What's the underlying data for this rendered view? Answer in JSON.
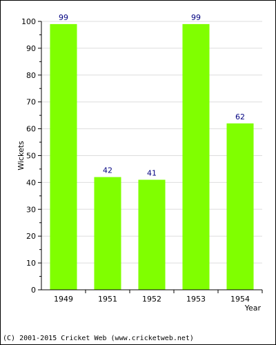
{
  "chart_data": {
    "type": "bar",
    "categories": [
      "1949",
      "1951",
      "1952",
      "1953",
      "1954"
    ],
    "values": [
      99,
      42,
      41,
      99,
      62
    ],
    "title": "",
    "xlabel": "Year",
    "ylabel": "Wickets",
    "ylim": [
      0,
      100
    ],
    "yticks": [
      0,
      10,
      20,
      30,
      40,
      50,
      60,
      70,
      80,
      90,
      100
    ],
    "grid": true,
    "legend": "none",
    "bar_color": "#80ff00",
    "label_color": "#000080"
  },
  "footer": {
    "text": "(C) 2001-2015 Cricket Web (www.cricketweb.net)"
  }
}
